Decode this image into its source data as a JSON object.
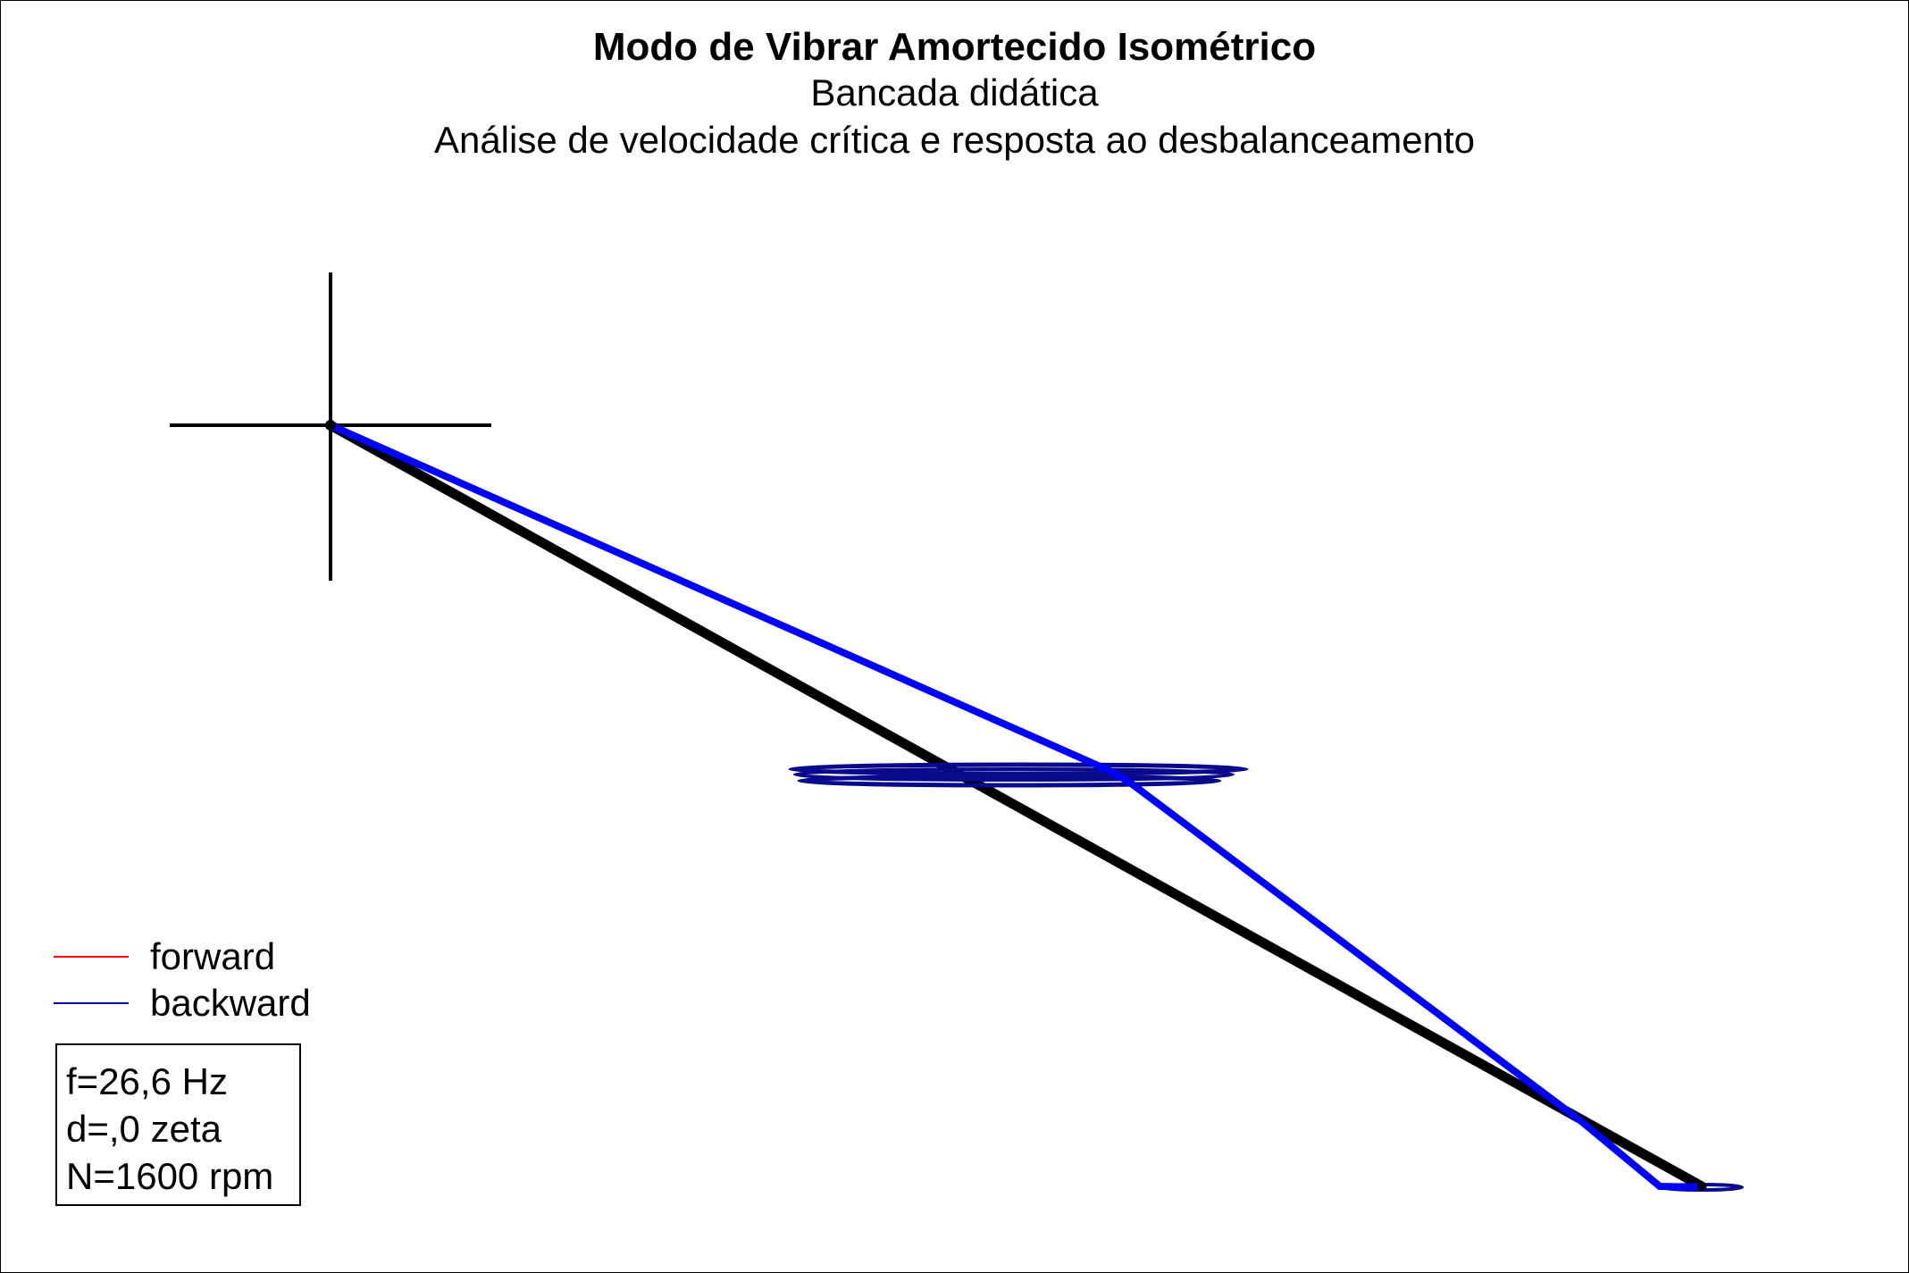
{
  "chart_data": {
    "type": "line",
    "title": "Modo de Vibrar Amortecido Isométrico",
    "subtitle": "Bancada didática",
    "subtitle2": "Análise de velocidade crítica e resposta ao desbalanceamento",
    "legend": [
      {
        "label": "forward",
        "color": "#ff0000"
      },
      {
        "label": "backward",
        "color": "#0000aa"
      }
    ],
    "series_colors": {
      "undeformed_shaft": "#000000",
      "mode_shape": "#0000ff",
      "orbit": "#0a0a8c"
    },
    "info": {
      "frequency": "f=26,6 Hz",
      "damping": "d=,0 zeta",
      "speed": "N=1600 rpm"
    }
  }
}
